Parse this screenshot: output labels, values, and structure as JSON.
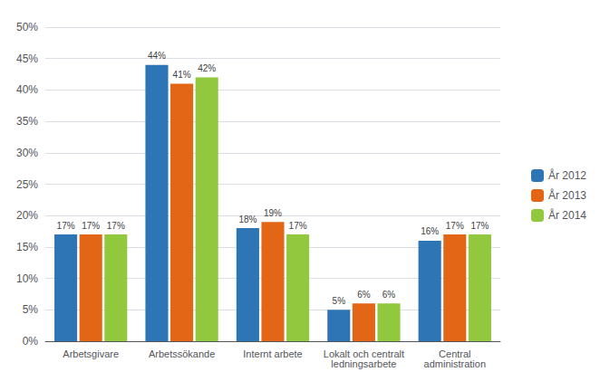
{
  "chart_data": {
    "type": "bar",
    "categories": [
      "Arbetsgivare",
      "Arbetssökande",
      "Internt arbete",
      "Lokalt och centralt\nledningsarbete",
      "Central\nadministration"
    ],
    "series": [
      {
        "name": "År 2012",
        "color": "#2e75b6",
        "values": [
          17,
          44,
          18,
          5,
          16
        ],
        "value_labels": [
          "17%",
          "44%",
          "18%",
          "5%",
          "16%"
        ]
      },
      {
        "name": "År 2013",
        "color": "#e36516",
        "values": [
          17,
          41,
          19,
          6,
          17
        ],
        "value_labels": [
          "17%",
          "41%",
          "19%",
          "6%",
          "17%"
        ]
      },
      {
        "name": "År 2014",
        "color": "#92c83e",
        "values": [
          17,
          42,
          17,
          6,
          17
        ],
        "value_labels": [
          "17%",
          "42%",
          "17%",
          "6%",
          "17%"
        ]
      }
    ],
    "ylim": [
      0,
      50
    ],
    "yticks": [
      {
        "value": 0,
        "label": "0%"
      },
      {
        "value": 5,
        "label": "5%"
      },
      {
        "value": 10,
        "label": "10%"
      },
      {
        "value": 15,
        "label": "15%"
      },
      {
        "value": 20,
        "label": "20%"
      },
      {
        "value": 25,
        "label": "25%"
      },
      {
        "value": 30,
        "label": "30%"
      },
      {
        "value": 35,
        "label": "35%"
      },
      {
        "value": 40,
        "label": "40%"
      },
      {
        "value": 45,
        "label": "45%"
      },
      {
        "value": 50,
        "label": "50%"
      }
    ],
    "grid": true,
    "legend": "right",
    "data_labels": true
  }
}
